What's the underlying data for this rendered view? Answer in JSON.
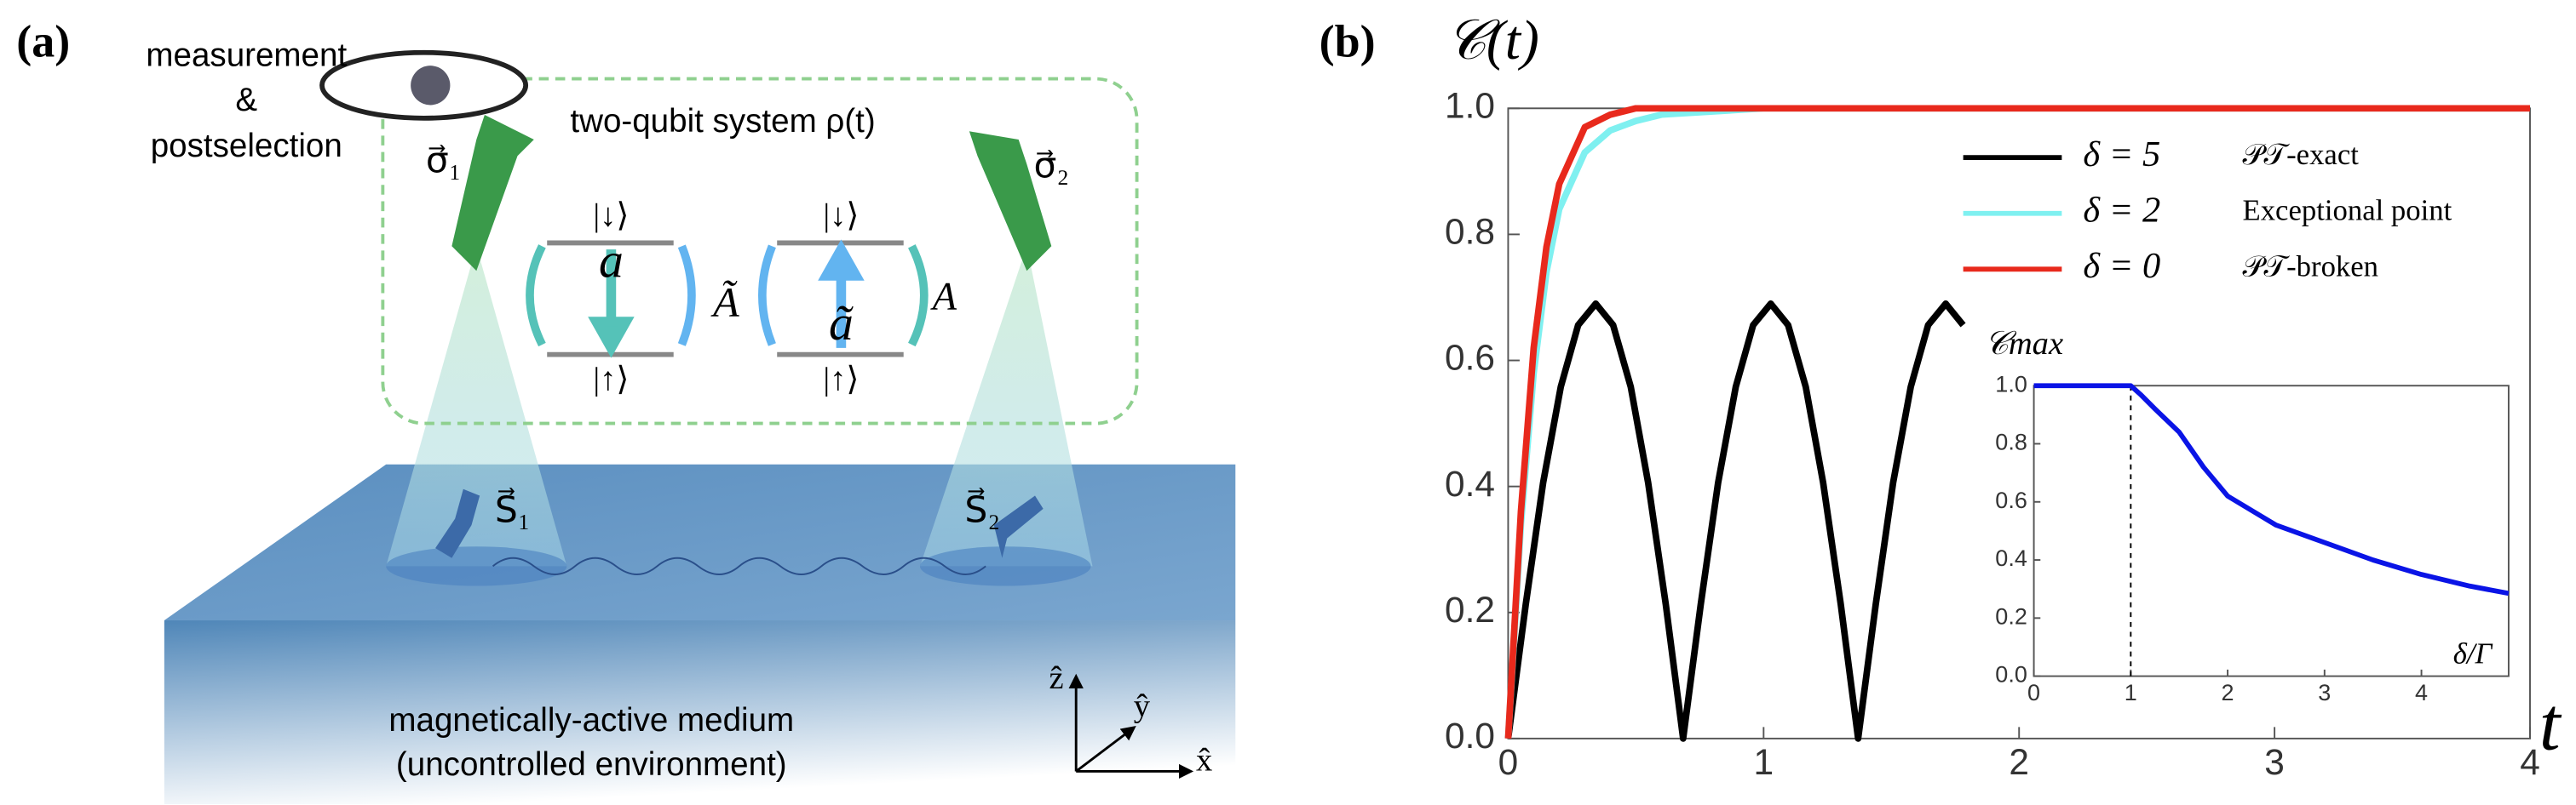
{
  "panel_a": {
    "panel_label": "(a)",
    "measurement": "measurement",
    "amp": "&",
    "postselection": "postselection",
    "system": "two-qubit system ρ(t)",
    "sigma1": "σ⃗₁",
    "sigma2": "σ⃗₂",
    "down1": "|↓⟩",
    "up1": "|↑⟩",
    "a": "a",
    "A_tilde": "Ã",
    "down2": "|↓⟩",
    "up2": "|↑⟩",
    "a_tilde": "ã",
    "A": "A",
    "S1": "S⃗₁",
    "S2": "S⃗₂",
    "medium": "magnetically-active medium",
    "environment": "(uncontrolled environment)",
    "z": "ẑ",
    "y": "ŷ",
    "x": "x̂"
  },
  "chart_data": [
    {
      "type": "line",
      "panel_label": "(b)",
      "ylabel": "𝒞(t)",
      "xlabel": "t",
      "xlim": [
        0,
        4
      ],
      "ylim": [
        0,
        1
      ],
      "xticks": [
        0,
        1,
        2,
        3,
        4
      ],
      "yticks": [
        {
          "value": 0,
          "label": "0.0"
        },
        0.2,
        0.4,
        0.6,
        0.8,
        {
          "value": 1,
          "label": "1.0"
        }
      ],
      "legend": "upper right",
      "series": [
        {
          "name": "δ = 5",
          "label": "𝒫𝒯-exact",
          "color": "#000000",
          "x": [
            0,
            0.069,
            0.137,
            0.206,
            0.274,
            0.343,
            0.411,
            0.48,
            0.548,
            0.617,
            0.685,
            0.754,
            0.822,
            0.891,
            0.959,
            1.028,
            1.096,
            1.165,
            1.233,
            1.302,
            1.37,
            1.439,
            1.507,
            1.576,
            1.644,
            1.713,
            1.781
          ],
          "values": [
            0,
            0.213,
            0.406,
            0.558,
            0.656,
            0.69,
            0.656,
            0.558,
            0.406,
            0.213,
            0,
            0.213,
            0.406,
            0.558,
            0.656,
            0.69,
            0.656,
            0.558,
            0.406,
            0.213,
            0,
            0.213,
            0.406,
            0.558,
            0.656,
            0.69,
            0.656
          ]
        },
        {
          "name": "δ = 2",
          "label": "Exceptional point",
          "color": "#7ff0f0",
          "x": [
            0,
            0.05,
            0.1,
            0.15,
            0.2,
            0.3,
            0.4,
            0.5,
            0.6,
            0.8,
            1,
            2,
            3,
            4
          ],
          "values": [
            0,
            0.34,
            0.58,
            0.74,
            0.84,
            0.93,
            0.965,
            0.98,
            0.99,
            0.995,
            1,
            1,
            1,
            1
          ]
        },
        {
          "name": "δ = 0",
          "label": "𝒫𝒯-broken",
          "color": "#e8291c",
          "x": [
            0,
            0.05,
            0.1,
            0.15,
            0.2,
            0.3,
            0.4,
            0.5,
            0.6,
            0.8,
            1,
            2,
            3,
            4
          ],
          "values": [
            0,
            0.36,
            0.62,
            0.78,
            0.88,
            0.97,
            0.99,
            1,
            1,
            1,
            1,
            1,
            1,
            1
          ]
        }
      ]
    },
    {
      "type": "line",
      "ylabel": "𝒞max",
      "xlabel": "δ/Γ",
      "xlim": [
        0,
        4.9
      ],
      "ylim": [
        0,
        1
      ],
      "xticks": [
        0,
        1,
        2,
        3,
        4
      ],
      "yticks": [
        {
          "value": 0,
          "label": "0.0"
        },
        0.2,
        0.4,
        0.6,
        0.8,
        {
          "value": 1,
          "label": "1.0"
        }
      ],
      "vline": 1,
      "series": [
        {
          "color": "#0a14e6",
          "x": [
            0,
            0.5,
            1,
            1.1,
            1.25,
            1.5,
            1.75,
            2,
            2.5,
            3,
            3.5,
            4,
            4.5,
            4.9
          ],
          "values": [
            1,
            1,
            1,
            0.97,
            0.92,
            0.84,
            0.72,
            0.62,
            0.52,
            0.46,
            0.4,
            0.35,
            0.31,
            0.285
          ]
        }
      ]
    }
  ]
}
